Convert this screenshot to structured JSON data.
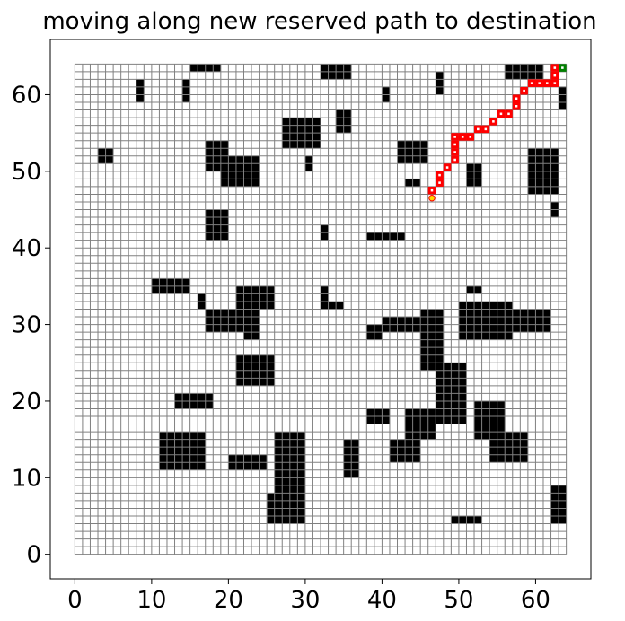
{
  "chart_data": {
    "type": "heatmap",
    "title": "moving along new reserved path to destination",
    "xlabel": "",
    "ylabel": "",
    "grid_size": [
      64,
      64
    ],
    "xlim": [
      -3.2,
      67.2
    ],
    "ylim": [
      -3.2,
      67.2
    ],
    "x_ticks": [
      0,
      10,
      20,
      30,
      40,
      50,
      60
    ],
    "y_ticks": [
      0,
      10,
      20,
      30,
      40,
      50,
      60
    ],
    "x_tick_labels": [
      "0",
      "10",
      "20",
      "30",
      "40",
      "50",
      "60"
    ],
    "y_tick_labels": [
      "0",
      "10",
      "20",
      "30",
      "40",
      "50",
      "60"
    ],
    "grid": true,
    "colors": {
      "free_cell": "#ffffff",
      "cell_edge": "#808080",
      "obstacle": "#000000",
      "path": "#ff0000",
      "destination": "#008000",
      "agent": "#ffd700"
    },
    "obstacles": [
      [
        15,
        63,
        4,
        1
      ],
      [
        32,
        62,
        4,
        2
      ],
      [
        56,
        62,
        5,
        2
      ],
      [
        14,
        59,
        1,
        3
      ],
      [
        8,
        59,
        1,
        3
      ],
      [
        40,
        59,
        1,
        2
      ],
      [
        47,
        60,
        1,
        3
      ],
      [
        63,
        58,
        1,
        3
      ],
      [
        34,
        55,
        2,
        3
      ],
      [
        27,
        53,
        5,
        4
      ],
      [
        42,
        51,
        4,
        3
      ],
      [
        17,
        50,
        3,
        4
      ],
      [
        19,
        48,
        5,
        4
      ],
      [
        3,
        51,
        2,
        2
      ],
      [
        30,
        50,
        1,
        2
      ],
      [
        51,
        48,
        2,
        3
      ],
      [
        43,
        48,
        2,
        1
      ],
      [
        59,
        47,
        4,
        6
      ],
      [
        62,
        44,
        1,
        2
      ],
      [
        17,
        41,
        3,
        4
      ],
      [
        32,
        41,
        1,
        2
      ],
      [
        38,
        41,
        5,
        1
      ],
      [
        10,
        34,
        5,
        2
      ],
      [
        16,
        32,
        1,
        2
      ],
      [
        21,
        32,
        5,
        3
      ],
      [
        32,
        32,
        1,
        3
      ],
      [
        33,
        32,
        2,
        1
      ],
      [
        51,
        34,
        2,
        1
      ],
      [
        17,
        29,
        6,
        3
      ],
      [
        22,
        28,
        2,
        4
      ],
      [
        38,
        28,
        2,
        2
      ],
      [
        40,
        29,
        5,
        2
      ],
      [
        50,
        28,
        7,
        5
      ],
      [
        56,
        29,
        6,
        3
      ],
      [
        58,
        30,
        2,
        2
      ],
      [
        45,
        24,
        3,
        8
      ],
      [
        47,
        17,
        4,
        8
      ],
      [
        21,
        22,
        5,
        4
      ],
      [
        13,
        19,
        5,
        2
      ],
      [
        38,
        17,
        3,
        2
      ],
      [
        43,
        15,
        4,
        4
      ],
      [
        41,
        12,
        4,
        3
      ],
      [
        52,
        15,
        4,
        5
      ],
      [
        54,
        12,
        5,
        4
      ],
      [
        11,
        11,
        6,
        5
      ],
      [
        20,
        11,
        5,
        2
      ],
      [
        26,
        4,
        4,
        12
      ],
      [
        25,
        4,
        2,
        4
      ],
      [
        35,
        10,
        2,
        5
      ],
      [
        49,
        4,
        4,
        1
      ],
      [
        62,
        4,
        2,
        5
      ]
    ],
    "path": [
      [
        62,
        63
      ],
      [
        62,
        62
      ],
      [
        62,
        61
      ],
      [
        61,
        61
      ],
      [
        60,
        61
      ],
      [
        59,
        61
      ],
      [
        58,
        60
      ],
      [
        57,
        59
      ],
      [
        57,
        58
      ],
      [
        56,
        57
      ],
      [
        55,
        57
      ],
      [
        54,
        56
      ],
      [
        53,
        55
      ],
      [
        52,
        55
      ],
      [
        51,
        54
      ],
      [
        50,
        54
      ],
      [
        49,
        54
      ],
      [
        49,
        53
      ],
      [
        49,
        52
      ],
      [
        49,
        51
      ],
      [
        48,
        50
      ],
      [
        47,
        49
      ],
      [
        47,
        48
      ],
      [
        46,
        47
      ]
    ],
    "destination": [
      63,
      63
    ],
    "agent": [
      46.5,
      46.5
    ]
  }
}
